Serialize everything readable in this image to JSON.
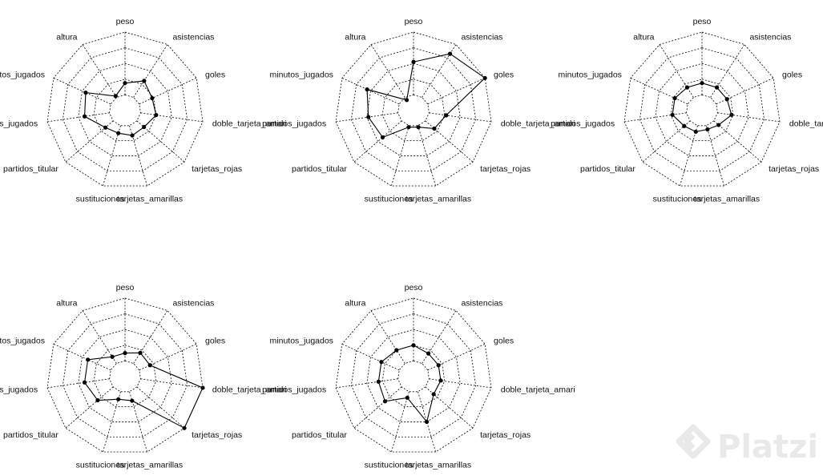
{
  "chart_data": {
    "type": "radar",
    "axes": [
      "peso",
      "asistencias",
      "goles",
      "doble_tarjeta_amari",
      "tarjetas_rojas",
      "tarjetas_amarillas",
      "sustituciones",
      "partidos_titular",
      "partidos_jugados",
      "minutos_jugados",
      "altura"
    ],
    "rlim": [
      0,
      1
    ],
    "grid": "dashed concentric polygons, 5 rings",
    "charts": [
      {
        "values": [
          0.35,
          0.45,
          0.38,
          0.4,
          0.32,
          0.33,
          0.3,
          0.33,
          0.52,
          0.55,
          0.22
        ]
      },
      {
        "values": [
          0.62,
          0.86,
          1.0,
          0.42,
          0.35,
          0.22,
          0.22,
          0.52,
          0.58,
          0.65,
          0.16
        ]
      },
      {
        "values": [
          0.35,
          0.35,
          0.35,
          0.38,
          0.28,
          0.25,
          0.28,
          0.3,
          0.38,
          0.38,
          0.35
        ]
      },
      {
        "values": [
          0.3,
          0.36,
          0.35,
          1.0,
          1.0,
          0.32,
          0.3,
          0.46,
          0.52,
          0.52,
          0.3
        ]
      },
      {
        "values": [
          0.4,
          0.35,
          0.35,
          0.35,
          0.34,
          0.6,
          0.28,
          0.48,
          0.45,
          0.45,
          0.4
        ]
      }
    ]
  },
  "watermark": {
    "text": "Platzi"
  }
}
